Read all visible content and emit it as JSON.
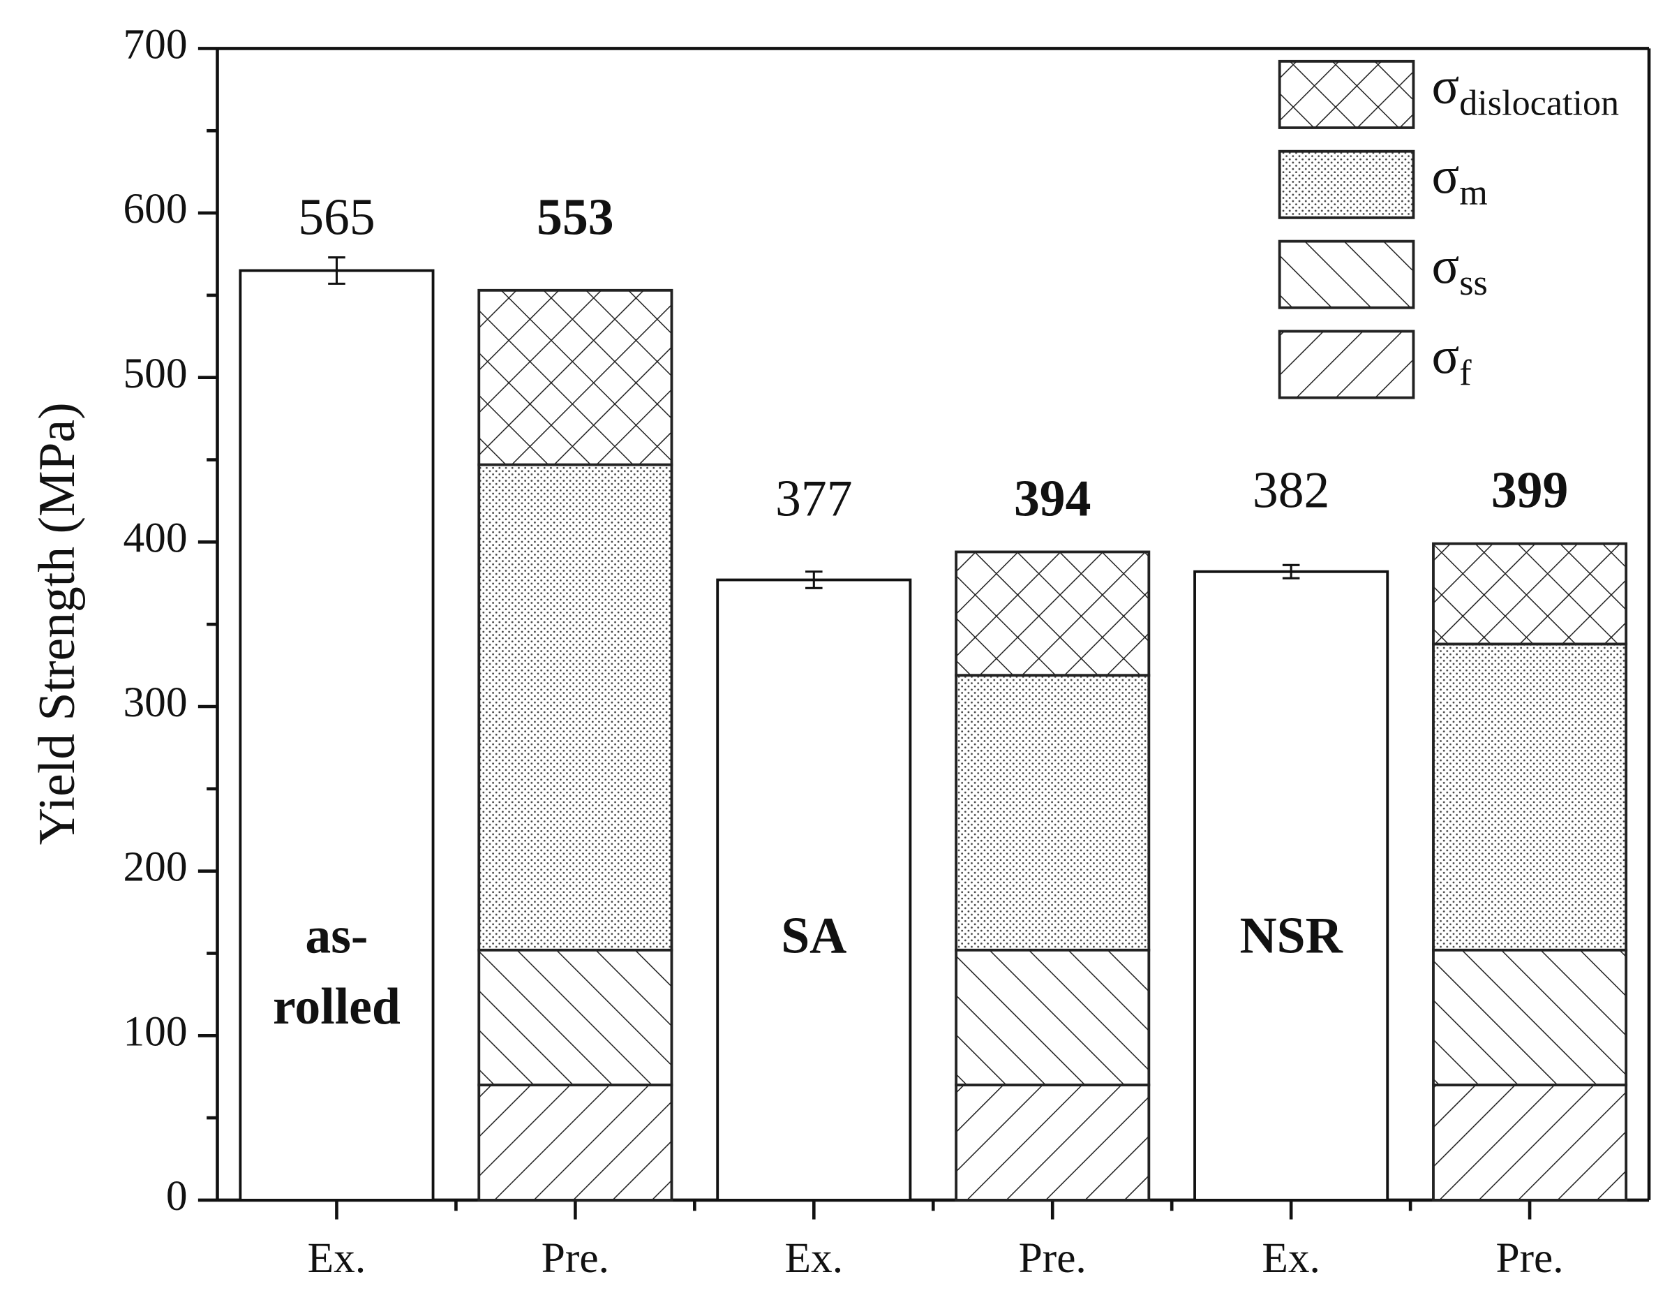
{
  "chart_data": {
    "type": "bar",
    "stacked": true,
    "y_label": "Yield Strength (MPa)",
    "categories": [
      "Ex.",
      "Pre.",
      "Ex.",
      "Pre.",
      "Ex.",
      "Pre."
    ],
    "group_labels": [
      [
        "as-",
        "rolled"
      ],
      [
        "SA"
      ],
      [
        "NSR"
      ]
    ],
    "measured": {
      "values": [
        565,
        null,
        377,
        null,
        382,
        null
      ],
      "errors": [
        8,
        null,
        5,
        null,
        4,
        null
      ],
      "color": "#ffffff"
    },
    "stack_totals": [
      null,
      553,
      null,
      394,
      null,
      399
    ],
    "series": [
      {
        "name": "σ",
        "subscript": "f",
        "pattern": "slash",
        "color": "#222222",
        "values": [
          null,
          70,
          null,
          70,
          null,
          70
        ]
      },
      {
        "name": "σ",
        "subscript": "ss",
        "pattern": "backslash",
        "color": "#222222",
        "values": [
          null,
          82,
          null,
          82,
          null,
          82
        ]
      },
      {
        "name": "σ",
        "subscript": "m",
        "pattern": "dots",
        "color": "#222222",
        "values": [
          null,
          295,
          null,
          167,
          null,
          186
        ]
      },
      {
        "name": "σ",
        "subscript": "dislocation",
        "pattern": "crosshatch",
        "color": "#222222",
        "values": [
          null,
          106,
          null,
          75,
          null,
          61
        ]
      }
    ],
    "ylim": [
      0,
      700
    ],
    "yticks": [
      0,
      100,
      200,
      300,
      400,
      500,
      600,
      700
    ],
    "legend": "upper right"
  }
}
